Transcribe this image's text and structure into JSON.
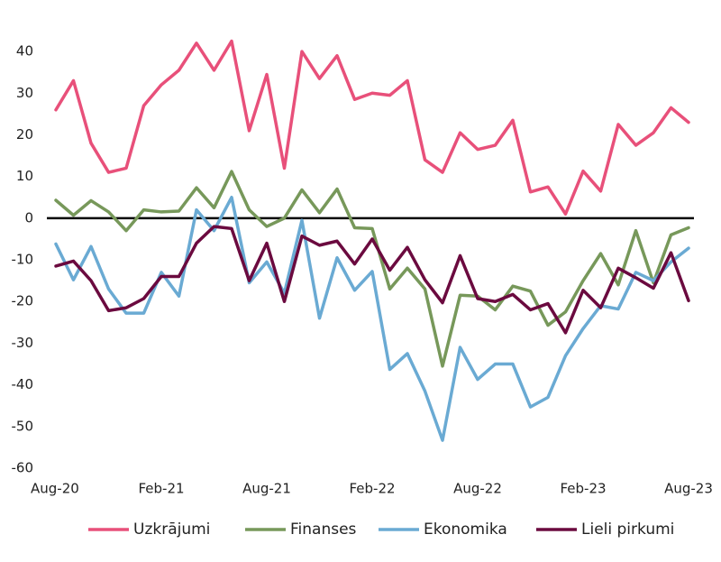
{
  "chart_data": {
    "type": "line",
    "categories": [
      "Aug-20",
      null,
      null,
      null,
      null,
      null,
      "Feb-21",
      null,
      null,
      null,
      null,
      null,
      "Aug-21",
      null,
      null,
      null,
      null,
      null,
      "Feb-22",
      null,
      null,
      null,
      null,
      null,
      "Aug-22",
      null,
      null,
      null,
      null,
      null,
      "Feb-23",
      null,
      null,
      null,
      null,
      null,
      "Aug-23"
    ],
    "series": [
      {
        "name": "Uzkrājumi",
        "color": "#e8507a",
        "values": [
          26,
          33,
          18,
          11,
          12,
          27,
          32,
          35.5,
          42,
          35.5,
          42.5,
          21,
          34.5,
          12,
          40,
          33.5,
          39,
          28.5,
          30,
          29.5,
          33,
          14,
          11,
          20.5,
          16.5,
          17.5,
          23.5,
          6.3,
          7.5,
          1,
          11.3,
          6.5,
          22.5,
          17.5,
          20.5,
          26.5,
          23
        ]
      },
      {
        "name": "Finanses",
        "color": "#77985a",
        "values": [
          4.3,
          0.7,
          4.2,
          1.5,
          -3,
          2,
          1.5,
          1.7,
          7.3,
          2.5,
          11.2,
          2,
          -2,
          0,
          6.8,
          1.3,
          7,
          -2.3,
          -2.5,
          -17,
          -12,
          -17,
          -35.5,
          -18.5,
          -18.7,
          -22,
          -16.3,
          -17.5,
          -25.7,
          -22.5,
          -15,
          -8.5,
          -16,
          -3,
          -15.5,
          -4,
          -2.3
        ]
      },
      {
        "name": "Ekonomika",
        "color": "#6aaad3",
        "values": [
          -6.2,
          -14.8,
          -6.8,
          -17,
          -22.8,
          -22.8,
          -13,
          -18.7,
          2,
          -3,
          5,
          -15.5,
          -10.5,
          -18,
          -0.5,
          -24,
          -9.5,
          -17.3,
          -12.8,
          -36.3,
          -32.5,
          -41.5,
          -53.3,
          -31,
          -38.7,
          -35,
          -35,
          -45.3,
          -43,
          -33,
          -26.5,
          -21,
          -21.8,
          -13,
          -15,
          -10.5,
          -7.2
        ]
      },
      {
        "name": "Lieli pirkumi",
        "color": "#6b0a3f",
        "values": [
          -11.5,
          -10.3,
          -15,
          -22.2,
          -21.5,
          -19.3,
          -14,
          -14,
          -6,
          -2,
          -2.5,
          -15,
          -6,
          -20,
          -4.3,
          -6.5,
          -5.5,
          -11,
          -5,
          -12.5,
          -7,
          -14.8,
          -20.3,
          -9,
          -19.3,
          -20,
          -18.3,
          -22,
          -20.5,
          -27.5,
          -17.3,
          -21.5,
          -12,
          -14.3,
          -16.8,
          -8.3,
          -19.8
        ]
      }
    ],
    "ylim": [
      -60,
      45
    ],
    "yticks": [
      -60,
      -50,
      -40,
      -30,
      -20,
      -10,
      0,
      10,
      20,
      30,
      40
    ],
    "grid": false,
    "legend": "bottom"
  }
}
